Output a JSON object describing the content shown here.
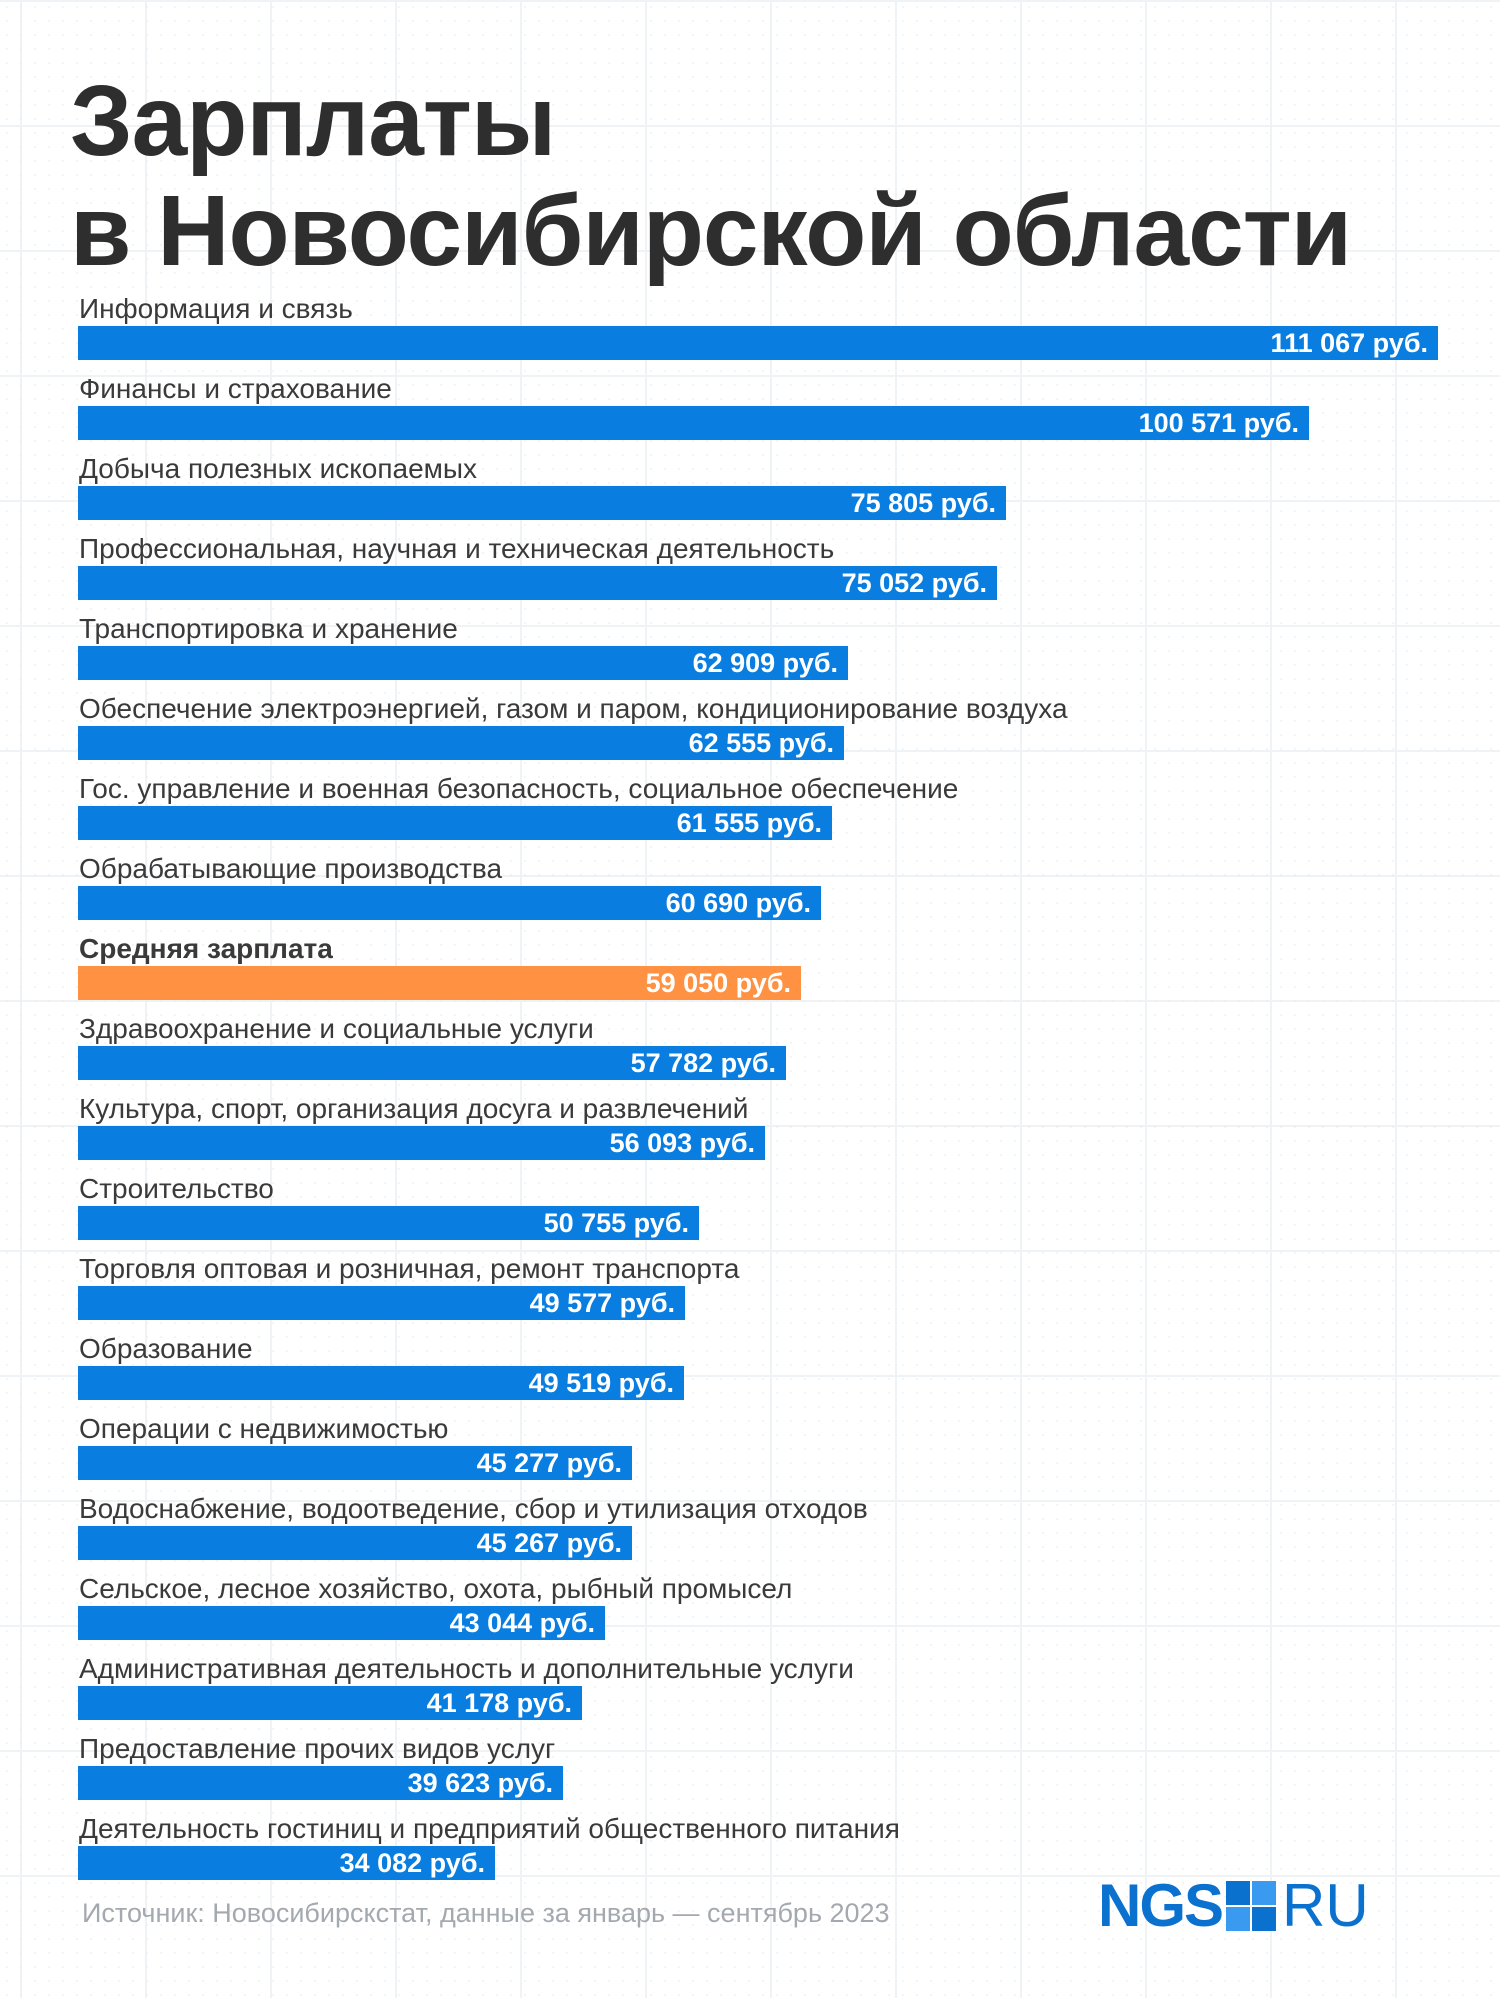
{
  "title_lines": [
    "Зарплаты",
    "в Новосибирской области"
  ],
  "source_note": "Источник: Новосибирскстат, данные за январь — сентябрь 2023",
  "logo": {
    "left": "NGS",
    "right": "RU",
    "color": "#0a71cf"
  },
  "colors": {
    "bar": "#0a7ee0",
    "highlight": "#ff9142",
    "title": "#2e2e2e"
  },
  "chart_data": {
    "type": "bar",
    "orientation": "horizontal",
    "unit": "руб.",
    "highlight_index": 8,
    "xlim": [
      0,
      111067
    ],
    "categories": [
      "Информация и связь",
      "Финансы и страхование",
      "Добыча полезных ископаемых",
      "Профессиональная, научная и техническая деятельность",
      "Транспортировка и хранение",
      "Обеспечение электроэнергией, газом и паром, кондиционирование воздуха",
      "Гос. управление и военная безопасность, социальное обеспечение",
      "Обрабатывающие производства",
      "Средняя зарплата",
      "Здравоохранение и социальные услуги",
      "Культура, спорт, организация досуга и развлечений",
      "Строительство",
      "Торговля оптовая и розничная, ремонт транспорта",
      "Образование",
      "Операции с недвижимостью",
      "Водоснабжение, водоотведение, сбор и утилизация отходов",
      "Сельское, лесное хозяйство, охота, рыбный промысел",
      "Административная деятельность и дополнительные услуги",
      "Предоставление прочих видов услуг",
      "Деятельность гостиниц и предприятий общественного питания"
    ],
    "values": [
      111067,
      100571,
      75805,
      75052,
      62909,
      62555,
      61555,
      60690,
      59050,
      57782,
      56093,
      50755,
      49577,
      49519,
      45277,
      45267,
      43044,
      41178,
      39623,
      34082
    ],
    "value_labels": [
      "111 067 руб.",
      "100 571 руб.",
      "75 805 руб.",
      "75 052 руб.",
      "62 909 руб.",
      "62 555 руб.",
      "61 555 руб.",
      "60 690 руб.",
      "59 050 руб.",
      "57 782 руб.",
      "56 093 руб.",
      "50 755 руб.",
      "49 577 руб.",
      "49 519 руб.",
      "45 277 руб.",
      "45 267 руб.",
      "43 044 руб.",
      "41 178 руб.",
      "39 623 руб.",
      "34 082 руб."
    ]
  }
}
